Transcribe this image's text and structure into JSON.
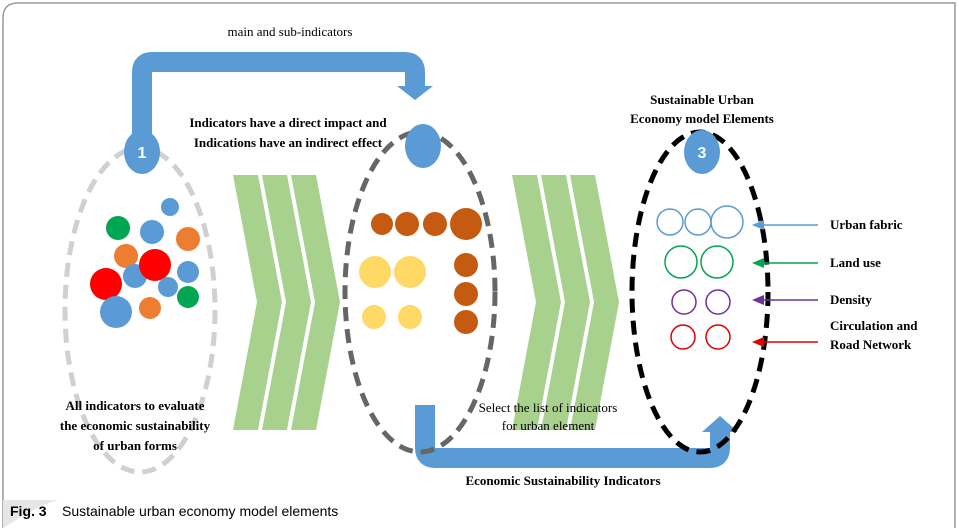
{
  "top_label": "main and sub-indicators",
  "impact_note": [
    "Indicators have a direct impact and",
    "Indications have an indirect effect"
  ],
  "model_title": [
    "Sustainable Urban",
    "Economy model Elements"
  ],
  "steps": [
    "1",
    "3"
  ],
  "left_note": [
    "All indicators to evaluate",
    "the economic sustainability",
    "of urban forms"
  ],
  "select_note": [
    "Select  the list of indicators",
    "for urban element"
  ],
  "bottom_label": "Economic Sustainability Indicators",
  "elements": [
    {
      "lines": [
        "Urban fabric"
      ],
      "color": "#5b9bd5"
    },
    {
      "lines": [
        "Land use"
      ],
      "color": "#00a651"
    },
    {
      "lines": [
        "Density"
      ],
      "color": "#7030a0"
    },
    {
      "lines": [
        "Circulation and",
        "Road Network"
      ],
      "color": "#e00000"
    }
  ],
  "caption": {
    "label": "Fig. 3",
    "text": "Sustainable urban economy model elements"
  }
}
